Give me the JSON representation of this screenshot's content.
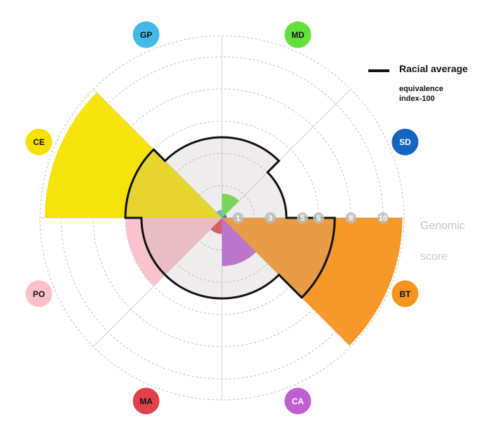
{
  "chart_data": {
    "type": "polar-area",
    "axis_title": [
      "Genomic",
      "score"
    ],
    "ticks": [
      "1",
      "3",
      "5",
      "6",
      "8",
      "10"
    ],
    "tick_values": [
      1,
      3,
      5,
      6,
      8,
      10
    ],
    "legend": {
      "label": "Racial average",
      "sub": [
        "equivalence",
        "index-100"
      ]
    },
    "categories": [
      {
        "code": "BT",
        "value": 11.2,
        "average": 7.0,
        "color": "#f7941d",
        "start_deg": 0,
        "end_deg": 45,
        "badge_text": "#111111"
      },
      {
        "code": "CA",
        "value": 3.0,
        "average": 5.0,
        "color": "#be5fd3",
        "start_deg": 45,
        "end_deg": 90,
        "badge_text": "#ffffff"
      },
      {
        "code": "MA",
        "value": 1.0,
        "average": 5.0,
        "color": "#e0404a",
        "start_deg": 90,
        "end_deg": 135,
        "badge_text": "#111111"
      },
      {
        "code": "PO",
        "value": 6.0,
        "average": 5.0,
        "color": "#f9c0cb",
        "start_deg": 135,
        "end_deg": 180,
        "badge_text": "#111111"
      },
      {
        "code": "CE",
        "value": 11.0,
        "average": 6.0,
        "color": "#f5e000",
        "start_deg": 180,
        "end_deg": 225,
        "badge_text": "#111111"
      },
      {
        "code": "GP",
        "value": 0.5,
        "average": 5.0,
        "color": "#42b9e6",
        "start_deg": 225,
        "end_deg": 270,
        "badge_text": "#111111"
      },
      {
        "code": "MD",
        "value": 1.5,
        "average": 5.0,
        "color": "#63e03c",
        "start_deg": 270,
        "end_deg": 315,
        "badge_text": "#111111"
      },
      {
        "code": "SD",
        "value": 0.3,
        "average": 4.0,
        "color": "#1565c0",
        "start_deg": 315,
        "end_deg": 360,
        "badge_text": "#ffffff"
      }
    ]
  }
}
